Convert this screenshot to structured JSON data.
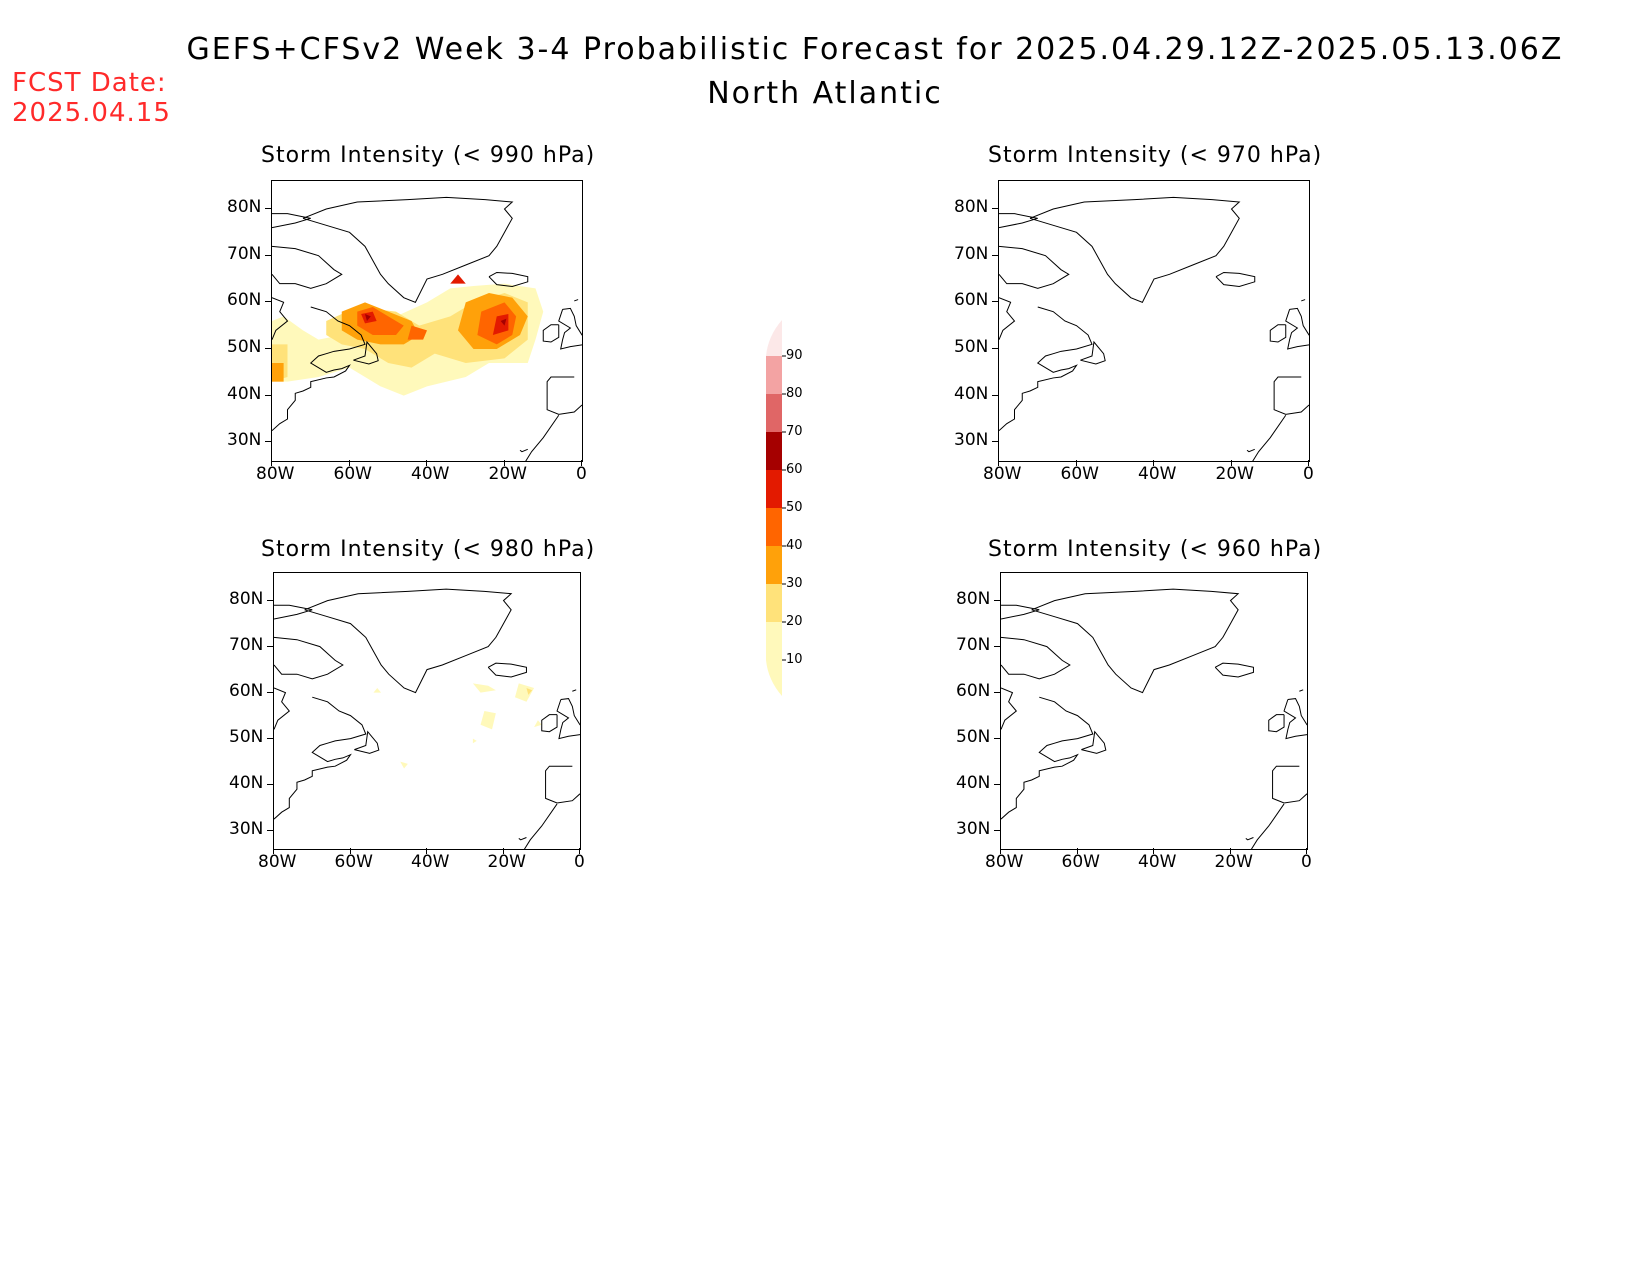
{
  "header": {
    "title": "GEFS+CFSv2 Week 3-4 Probabilistic Forecast for 2025.04.29.12Z-2025.05.13.06Z",
    "subtitle": "North Atlantic",
    "fcst_label": "FCST Date:",
    "fcst_date": "2025.04.15"
  },
  "panels": [
    {
      "id": "p990",
      "title": "Storm Intensity (< 990 hPa)"
    },
    {
      "id": "p970",
      "title": "Storm Intensity (< 970 hPa)"
    },
    {
      "id": "p980",
      "title": "Storm Intensity (< 980 hPa)"
    },
    {
      "id": "p960",
      "title": "Storm Intensity (< 960 hPa)"
    }
  ],
  "axes": {
    "lat_labels": [
      "80N",
      "70N",
      "60N",
      "50N",
      "40N",
      "30N"
    ],
    "lon_labels": [
      "80W",
      "60W",
      "40W",
      "20W",
      "0"
    ],
    "lat_values": [
      80,
      70,
      60,
      50,
      40,
      30
    ],
    "lon_values": [
      -80,
      -60,
      -40,
      -20,
      0
    ]
  },
  "colorbar": {
    "labels": [
      "10",
      "20",
      "30",
      "40",
      "50",
      "60",
      "70",
      "80",
      "90"
    ],
    "colors": [
      "#fff9bb",
      "#ffe27a",
      "#ffa10a",
      "#ff6500",
      "#e31a00",
      "#a50000",
      "#e06666",
      "#f3a3a3",
      "#fce8e8"
    ]
  }
}
